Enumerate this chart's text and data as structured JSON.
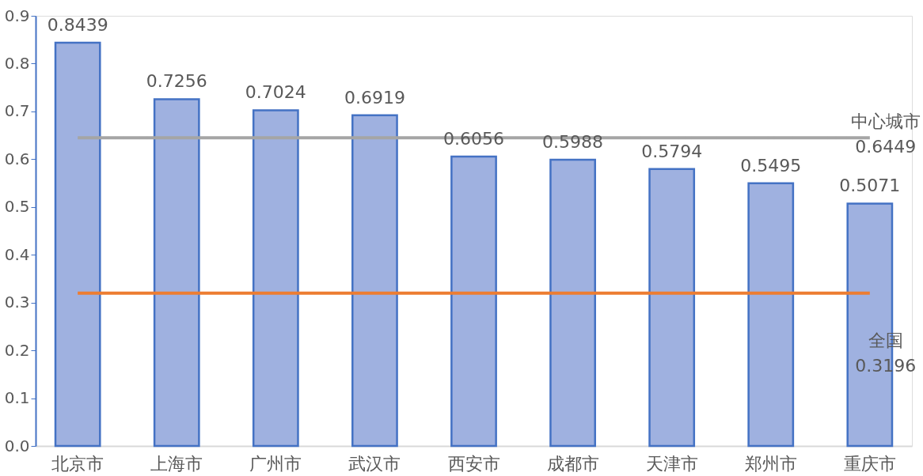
{
  "chart_data": {
    "type": "bar",
    "categories": [
      "北京市",
      "上海市",
      "广州市",
      "武汉市",
      "西安市",
      "成都市",
      "天津市",
      "郑州市",
      "重庆市"
    ],
    "values": [
      0.8439,
      0.7256,
      0.7024,
      0.6919,
      0.6056,
      0.5988,
      0.5794,
      0.5495,
      0.5071
    ],
    "color": "#9fb1e0",
    "data_labels": true,
    "ylim": [
      0,
      0.9
    ],
    "yticks": [
      {
        "value": 0,
        "label": "0.0"
      },
      0.1,
      0.2,
      0.3,
      0.4,
      0.5,
      0.6,
      0.7,
      0.8,
      0.9
    ],
    "grid": false,
    "ref_lines": [
      {
        "axis": "y",
        "value": 0.6449,
        "label": "中心城市\n0.6449",
        "color": "#a5a5a5"
      },
      {
        "axis": "y",
        "value": 0.3196,
        "label": "全国\n0.3196",
        "color": "#ed7d31"
      }
    ]
  }
}
